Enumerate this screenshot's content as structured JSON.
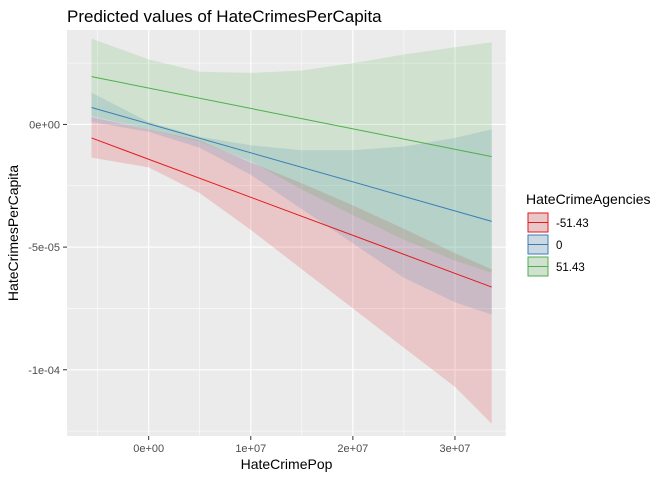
{
  "chart_data": {
    "type": "line",
    "title": "Predicted values of HateCrimesPerCapita",
    "xlabel": "HateCrimePop",
    "ylabel": "HateCrimesPerCapita",
    "xlim": [
      -8000000,
      35000000
    ],
    "ylim": [
      -0.000127,
      3.85e-05
    ],
    "x_ticks": [
      {
        "value": 0,
        "label": "0e+00"
      },
      {
        "value": 10000000,
        "label": "1e+07"
      },
      {
        "value": 20000000,
        "label": "2e+07"
      },
      {
        "value": 30000000,
        "label": "3e+07"
      }
    ],
    "y_ticks": [
      {
        "value": 0,
        "label": "0e+00"
      },
      {
        "value": -5e-05,
        "label": "-5e-05"
      },
      {
        "value": -0.0001,
        "label": "-1e-04"
      }
    ],
    "grid": true,
    "legend_title": "HateCrimeAgencies",
    "legend_position": "right",
    "series": [
      {
        "name": "-51.43",
        "color": "#e41a1c",
        "x": [
          -5600000,
          33600000
        ],
        "y": [
          -5.5e-06,
          -6.63e-05
        ],
        "band": {
          "x": [
            -5600000,
            0,
            5000000,
            10000000,
            15000000,
            20000000,
            25000000,
            30000000,
            33600000
          ],
          "lower": [
            -1.35e-05,
            -1.75e-05,
            -2.8e-05,
            -4.3e-05,
            -5.9e-05,
            -7.5e-05,
            -9.1e-05,
            -0.000107,
            -0.000122
          ],
          "upper": [
            3e-06,
            -2e-06,
            -6.5e-06,
            -1.55e-05,
            -2.4e-05,
            -3.3e-05,
            -4.25e-05,
            -5.25e-05,
            -5.9e-05
          ]
        }
      },
      {
        "name": "0",
        "color": "#377eb8",
        "x": [
          -5600000,
          33600000
        ],
        "y": [
          6.9e-06,
          -3.95e-05
        ],
        "band": {
          "x": [
            -5600000,
            0,
            5000000,
            10000000,
            15000000,
            20000000,
            25000000,
            30000000,
            33600000
          ],
          "lower": [
            1e-06,
            -3e-06,
            -9.5e-06,
            -2.05e-05,
            -3.45e-05,
            -4.85e-05,
            -6.25e-05,
            -7.25e-05,
            -7.75e-05
          ],
          "upper": [
            1.3e-05,
            1e-06,
            -5e-06,
            -8.5e-06,
            -1.05e-05,
            -1.05e-05,
            -9e-06,
            -5.5e-06,
            -2e-06
          ]
        }
      },
      {
        "name": "51.43",
        "color": "#4daf4a",
        "x": [
          -5600000,
          33600000
        ],
        "y": [
          1.95e-05,
          -1.31e-05
        ],
        "band": {
          "x": [
            -5600000,
            0,
            5000000,
            10000000,
            15000000,
            20000000,
            25000000,
            30000000,
            33600000
          ],
          "lower": [
            3.5e-06,
            -2e-06,
            -7e-06,
            -1.5e-05,
            -2.65e-05,
            -3.7e-05,
            -4.7e-05,
            -5.55e-05,
            -6.05e-05
          ],
          "upper": [
            3.5e-05,
            2.65e-05,
            2.15e-05,
            2.1e-05,
            2.2e-05,
            2.5e-05,
            2.85e-05,
            3.15e-05,
            3.35e-05
          ]
        }
      }
    ]
  },
  "theme": {
    "panel_background": "#ebebeb",
    "grid_major": "#ffffff",
    "band_opacity": 0.17
  }
}
